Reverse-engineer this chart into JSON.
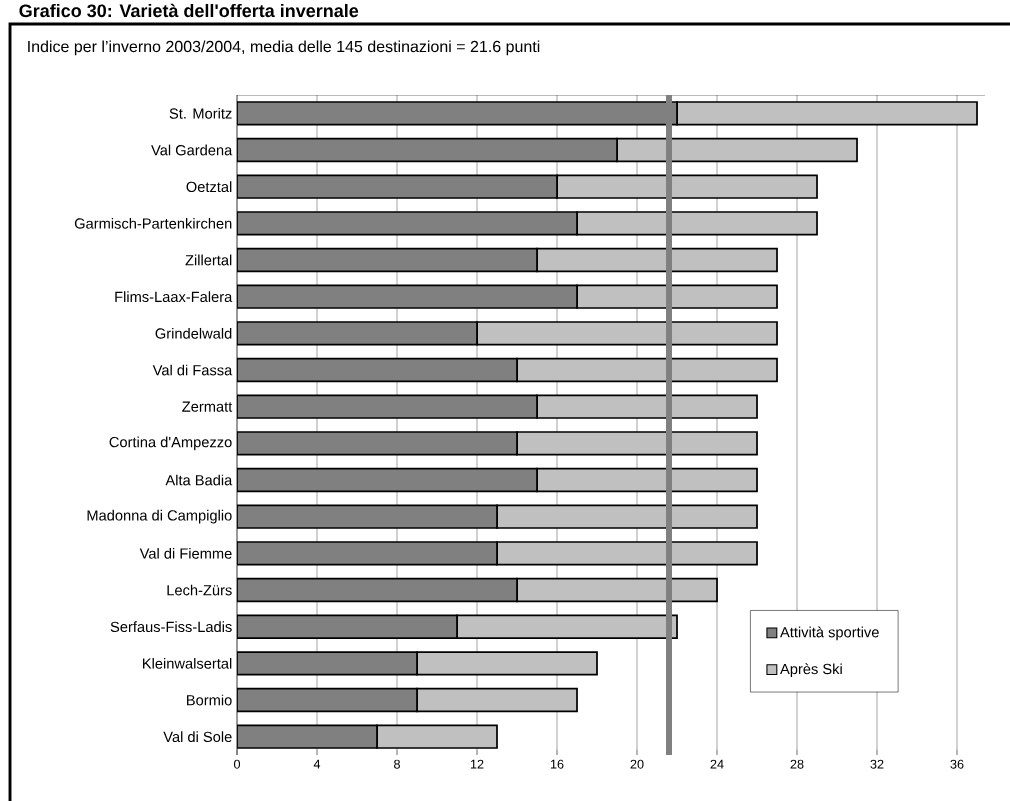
{
  "chart_data": {
    "type": "bar",
    "orientation": "horizontal",
    "stacked": true,
    "title": "Grafico 30: Varietà dell'offerta invernale",
    "subtitle": "Indice per l’inverno 2003/2004, media delle 145 destinazioni = 21.6 punti",
    "categories": [
      "St. Moritz",
      "Val Gardena",
      "Oetztal",
      "Garmisch-Partenkirchen",
      "Zillertal",
      "Flims-Laax-Falera",
      "Grindelwald",
      "Val di Fassa",
      "Zermatt",
      "Cortina d'Ampezzo",
      "Alta Badia",
      "Madonna di Campiglio",
      "Val di Fiemme",
      "Lech-Zürs",
      "Serfaus-Fiss-Ladis",
      "Kleinwalsertal",
      "Bormio",
      "Val di Sole"
    ],
    "series": [
      {
        "name": "Attività sportive",
        "color": "#808080",
        "values": [
          22,
          19,
          16,
          17,
          15,
          17,
          12,
          14,
          15,
          14,
          15,
          13,
          13,
          14,
          11,
          9,
          9,
          7
        ]
      },
      {
        "name": "Après Ski",
        "color": "#c0c0c0",
        "values": [
          15,
          12,
          13,
          12,
          12,
          10,
          15,
          13,
          11,
          12,
          11,
          13,
          13,
          10,
          11,
          9,
          8,
          6
        ]
      }
    ],
    "xlim": [
      0,
      37.4
    ],
    "xticks": [
      0,
      4,
      8,
      12,
      16,
      20,
      24,
      28,
      32,
      36
    ],
    "grid": "x",
    "legend": "bottom right",
    "ref_lines": [
      {
        "axis": "x",
        "value": 21.6,
        "color": "#808080"
      }
    ]
  }
}
